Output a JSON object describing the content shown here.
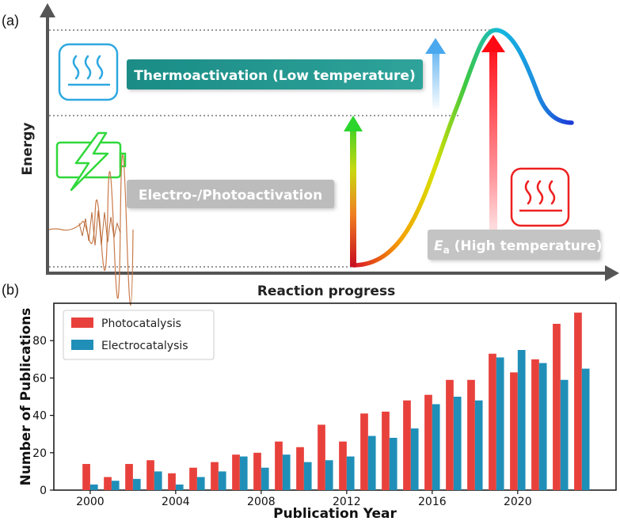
{
  "panel_a": {
    "label": "(a)",
    "y_axis_title": "Energy",
    "x_axis_title": "Reaction progress",
    "thermo_label": "Thermoactivation (Low temperature)",
    "electro_label": "Electro-/Photoactivation",
    "ea_symbol": "E",
    "ea_subscript": "a",
    "ea_rest": " (High temperature)",
    "icons": [
      "heat-waves-icon",
      "battery-lightning-icon",
      "light-wave-icon",
      "heat-waves-icon"
    ]
  },
  "panel_b": {
    "label": "(b)"
  },
  "colors": {
    "photocatalysis": "#e8413c",
    "electrocatalysis": "#1f8fb8",
    "thermo_banner": "#2a9d8f",
    "electro_banner": "#b9b9b9"
  },
  "chart_data": {
    "type": "bar",
    "xlabel": "Publication Year",
    "ylabel": "Number of Publications",
    "x": [
      2000,
      2001,
      2002,
      2003,
      2004,
      2005,
      2006,
      2007,
      2008,
      2009,
      2010,
      2011,
      2012,
      2013,
      2014,
      2015,
      2016,
      2017,
      2018,
      2019,
      2020,
      2021,
      2022,
      2023
    ],
    "series": [
      {
        "name": "Photocatalysis",
        "values": [
          14,
          7,
          14,
          16,
          9,
          12,
          15,
          19,
          20,
          26,
          23,
          35,
          26,
          41,
          42,
          48,
          51,
          59,
          59,
          73,
          63,
          70,
          89,
          95
        ]
      },
      {
        "name": "Electrocatalysis",
        "values": [
          3,
          5,
          6,
          10,
          3,
          7,
          10,
          18,
          12,
          19,
          15,
          16,
          18,
          29,
          28,
          33,
          46,
          50,
          48,
          71,
          75,
          68,
          59,
          65
        ]
      }
    ],
    "xlim": [
      1998.3,
      2024.6
    ],
    "ylim": [
      0,
      100
    ],
    "xticks": [
      "2000",
      "2004",
      "2008",
      "2012",
      "2016",
      "2020"
    ],
    "yticks": [
      "0",
      "20",
      "40",
      "60",
      "80"
    ],
    "legend": "top-left"
  }
}
